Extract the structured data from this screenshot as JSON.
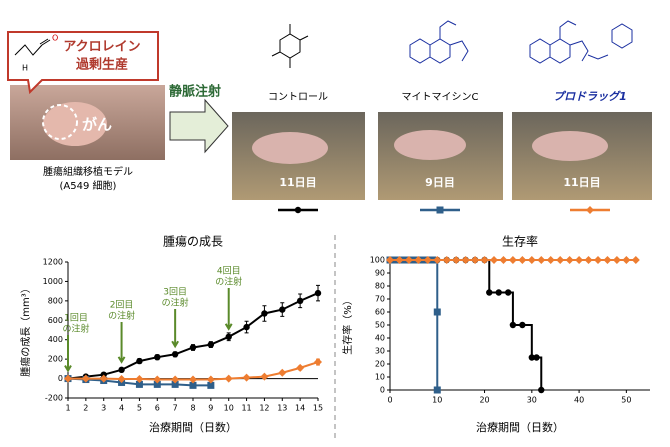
{
  "figure": {
    "bubble": [
      "アクロレイン",
      "過剰生産"
    ],
    "tumor": "がん",
    "model": [
      "腫瘍組織移植モデル",
      "(A549 細胞)"
    ],
    "injection": "静脈注射",
    "days": [
      "11日目",
      "9日目",
      "11日目"
    ]
  },
  "chart_data": [
    {
      "type": "line",
      "title": "腫瘍の成長",
      "y_label": "腫瘍の成長（mm³）",
      "x_label": "治療期間（日数）",
      "x": [
        1,
        2,
        3,
        4,
        5,
        6,
        7,
        8,
        9,
        10,
        11,
        12,
        13,
        14,
        15
      ],
      "xlim": [
        1,
        15
      ],
      "xticks": [
        1,
        2,
        3,
        4,
        5,
        6,
        7,
        8,
        9,
        10,
        11,
        12,
        13,
        14,
        15
      ],
      "ylim": [
        -200,
        1200
      ],
      "yticks": [
        -200,
        0,
        200,
        400,
        600,
        800,
        1000,
        1200
      ],
      "series": [
        {
          "name": "コントロール",
          "color": "#000000",
          "marker": "circle",
          "values": [
            0,
            20,
            40,
            90,
            180,
            220,
            250,
            320,
            350,
            430,
            530,
            670,
            710,
            800,
            880
          ],
          "errors": [
            0,
            10,
            15,
            20,
            25,
            25,
            25,
            30,
            30,
            40,
            60,
            80,
            70,
            70,
            80
          ]
        },
        {
          "name": "マイトマイシンC",
          "color": "#2f5f8a",
          "marker": "square",
          "values": [
            0,
            -10,
            -20,
            -40,
            -60,
            -60,
            -60,
            -70,
            -70,
            null,
            null,
            null,
            null,
            null,
            null
          ]
        },
        {
          "name": "プロドラッグ1",
          "color": "#ee7d31",
          "marker": "diamond",
          "values": [
            0,
            0,
            0,
            -5,
            -5,
            -10,
            -10,
            -10,
            -10,
            0,
            10,
            20,
            60,
            110,
            170
          ],
          "errors": [
            0,
            0,
            0,
            0,
            0,
            0,
            0,
            0,
            0,
            5,
            5,
            10,
            15,
            20,
            30
          ]
        }
      ],
      "annotations": [
        {
          "x": 1,
          "text": [
            "1回目",
            "の注射"
          ]
        },
        {
          "x": 4,
          "text": [
            "2回目",
            "の注射"
          ]
        },
        {
          "x": 7,
          "text": [
            "3回目",
            "の注射"
          ]
        },
        {
          "x": 10,
          "text": [
            "4回目",
            "の注射"
          ]
        }
      ],
      "annotation_color": "#5a8a2a"
    },
    {
      "type": "line",
      "step": true,
      "title": "生存率",
      "y_label": "生存率（%）",
      "x_label": "治療期間（日数）",
      "xlim": [
        0,
        55
      ],
      "xticks": [
        0,
        10,
        20,
        30,
        40,
        50
      ],
      "ylim": [
        0,
        100
      ],
      "yticks": [
        0,
        10,
        20,
        30,
        40,
        50,
        60,
        70,
        80,
        90,
        100
      ],
      "series": [
        {
          "color": "#000000",
          "marker": "circle",
          "x": [
            0,
            2,
            4,
            6,
            8,
            10,
            12,
            14,
            16,
            18,
            20,
            21,
            23,
            25,
            26,
            28,
            30,
            31,
            32
          ],
          "values": [
            100,
            100,
            100,
            100,
            100,
            100,
            100,
            100,
            100,
            100,
            100,
            75,
            75,
            75,
            50,
            50,
            25,
            25,
            0
          ]
        },
        {
          "color": "#2f5f8a",
          "marker": "square",
          "x": [
            0,
            1,
            2,
            3,
            4,
            5,
            6,
            7,
            8,
            9,
            10,
            10
          ],
          "values": [
            100,
            100,
            100,
            100,
            100,
            100,
            100,
            100,
            100,
            100,
            60,
            0
          ]
        },
        {
          "color": "#ee7d31",
          "marker": "diamond",
          "x": [
            0,
            2,
            4,
            6,
            8,
            10,
            12,
            14,
            16,
            18,
            20,
            22,
            24,
            26,
            28,
            30,
            32,
            34,
            36,
            38,
            40,
            42,
            44,
            46,
            48,
            50,
            52
          ],
          "values": [
            100,
            100,
            100,
            100,
            100,
            100,
            100,
            100,
            100,
            100,
            100,
            100,
            100,
            100,
            100,
            100,
            100,
            100,
            100,
            100,
            100,
            100,
            100,
            100,
            100,
            100,
            100
          ]
        }
      ]
    }
  ]
}
